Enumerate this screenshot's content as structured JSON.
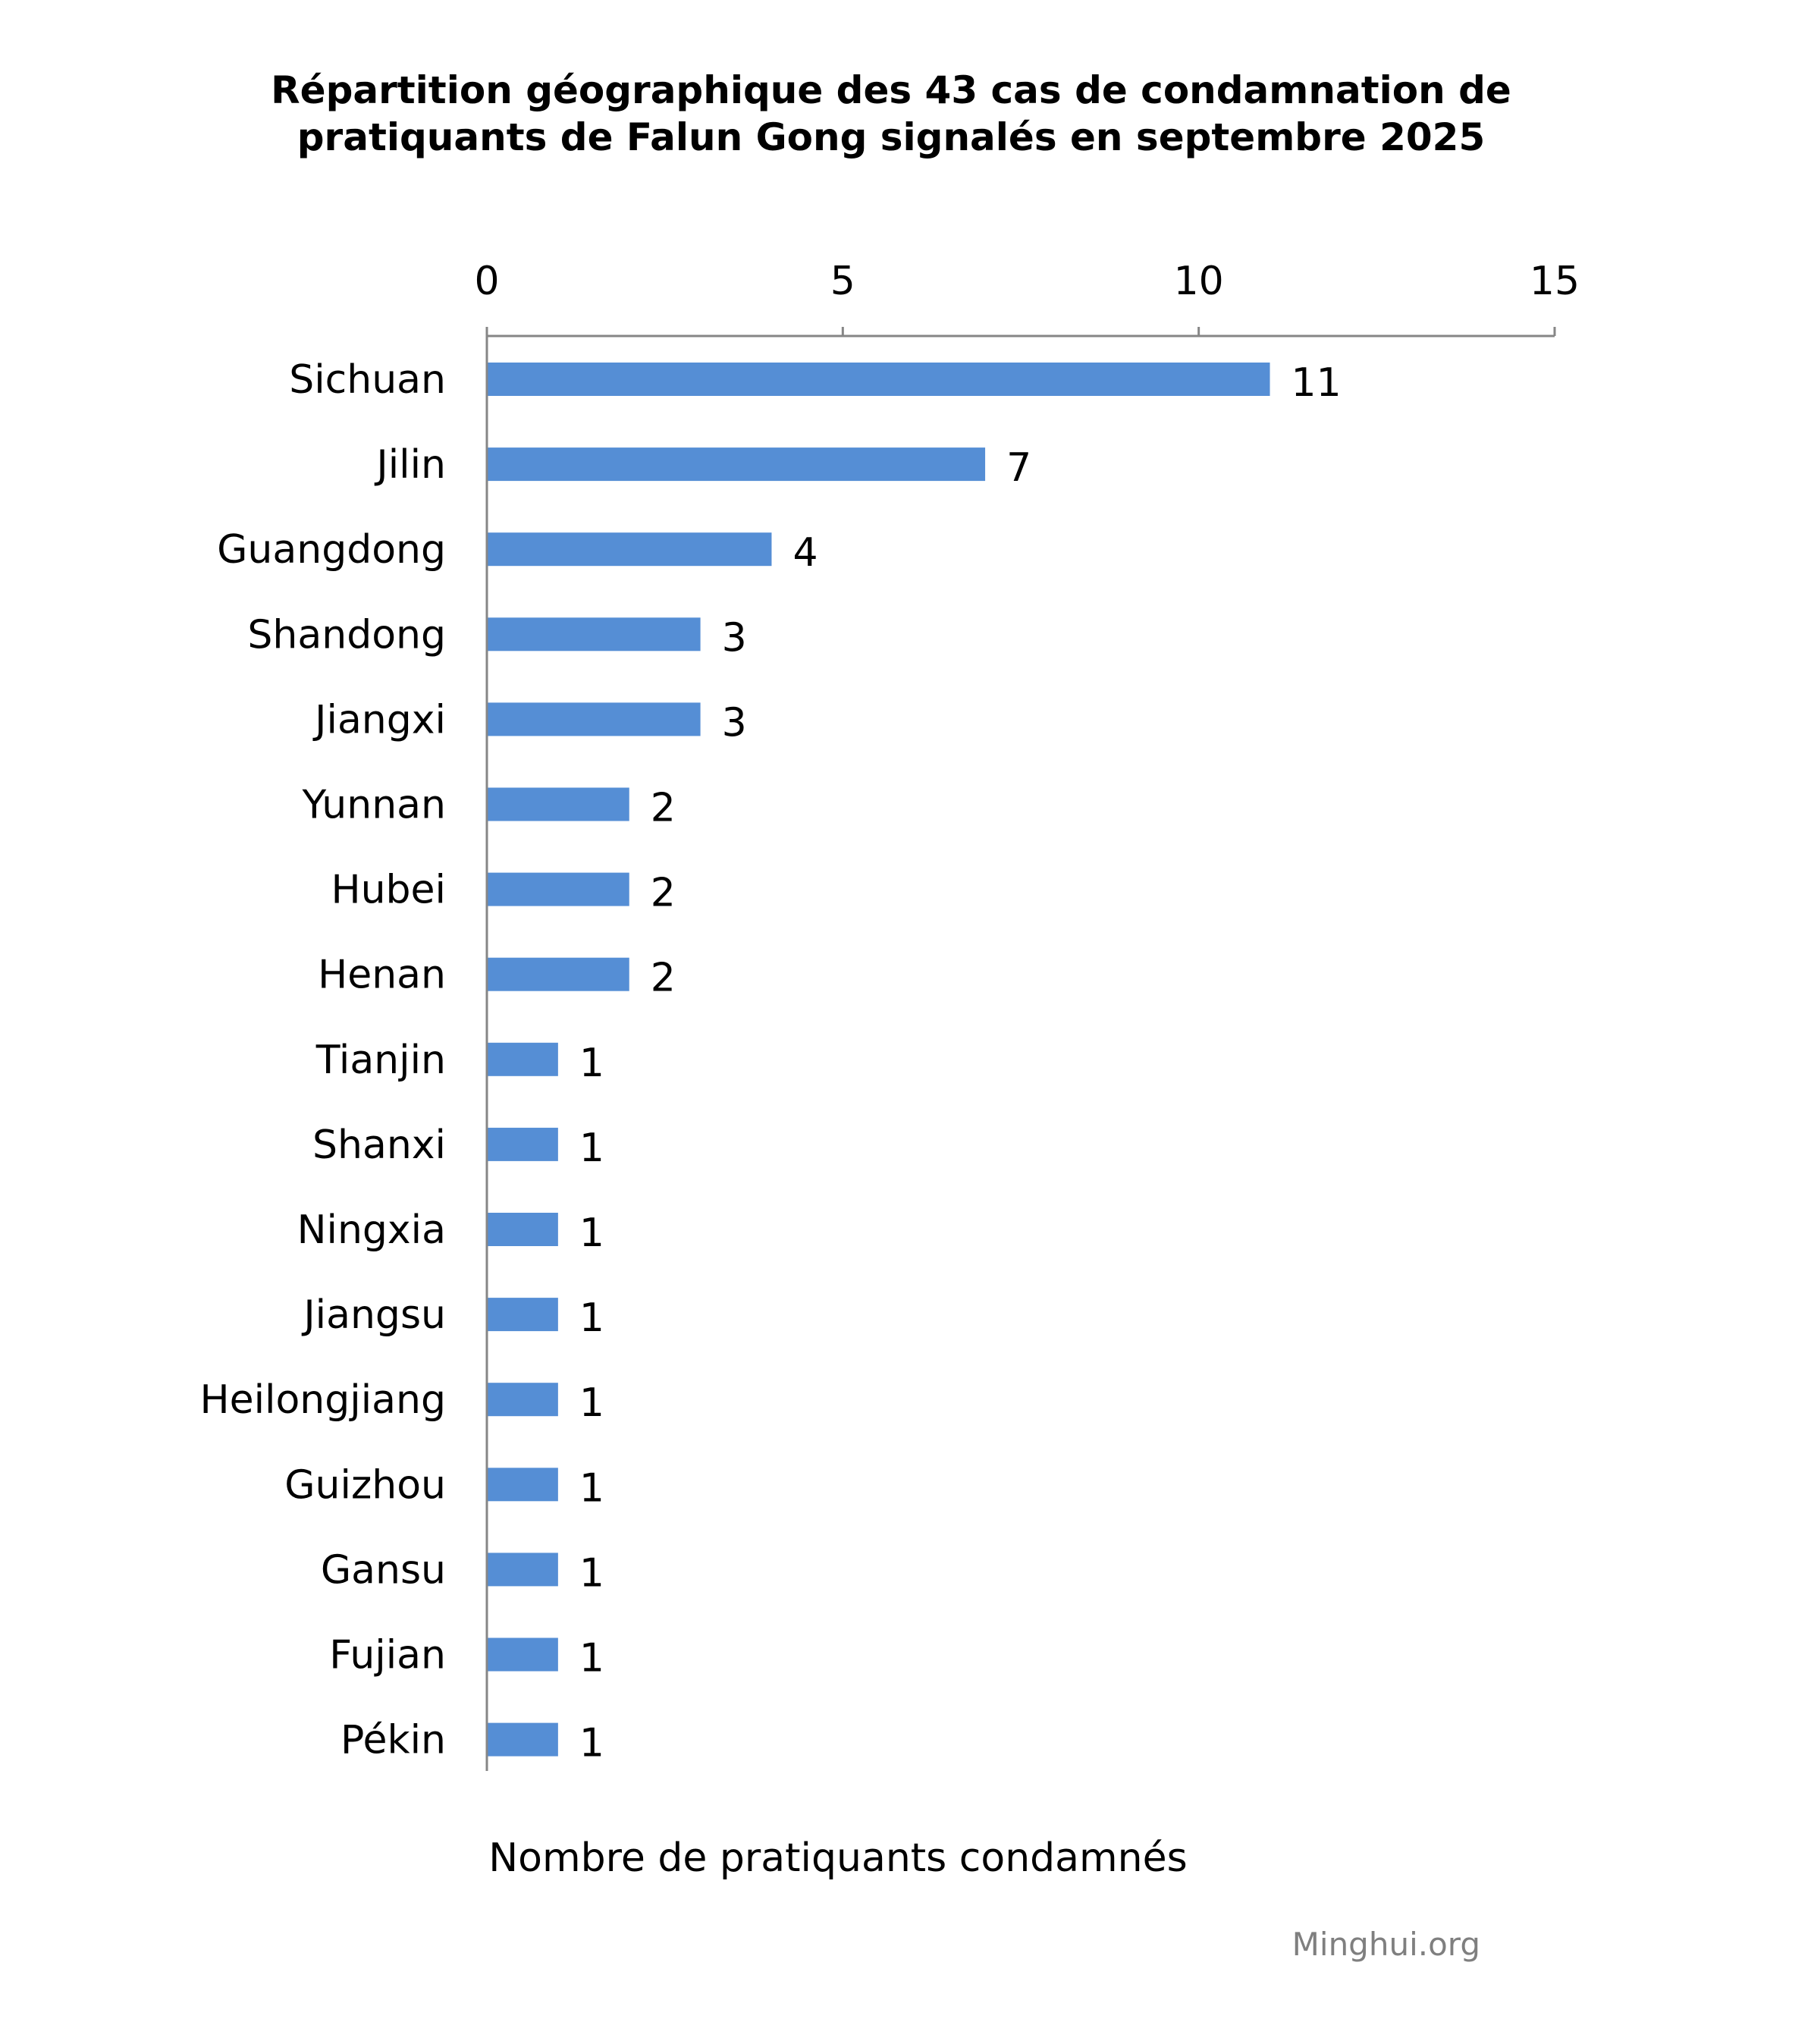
{
  "chart_data": {
    "type": "bar",
    "orientation": "horizontal",
    "title_lines": [
      "Répartition géographique des 43 cas de condamnation de",
      "pratiquants de Falun Gong signalés en septembre 2025"
    ],
    "categories": [
      "Sichuan",
      "Jilin",
      "Guangdong",
      "Shandong",
      "Jiangxi",
      "Yunnan",
      "Hubei",
      "Henan",
      "Tianjin",
      "Shanxi",
      "Ningxia",
      "Jiangsu",
      "Heilongjiang",
      "Guizhou",
      "Gansu",
      "Fujian",
      "Pékin"
    ],
    "values": [
      11,
      7,
      4,
      3,
      3,
      2,
      2,
      2,
      1,
      1,
      1,
      1,
      1,
      1,
      1,
      1,
      1
    ],
    "value_labels": [
      "11",
      "7",
      "4",
      "3",
      "3",
      "2",
      "2",
      "2",
      "1",
      "1",
      "1",
      "1",
      "1",
      "1",
      "1",
      "1",
      "1"
    ],
    "xlabel": "Nombre de pratiquants condamnés",
    "ylabel": "",
    "xlim": [
      0,
      15
    ],
    "x_ticks": [
      0,
      5,
      10,
      15
    ],
    "x_tick_labels": [
      "0",
      "5",
      "10",
      "15"
    ],
    "x_axis_position": "top",
    "grid": false,
    "legend": "none",
    "bar_color": "#558ed5",
    "axis_color": "#868686",
    "source": "Minghui.org",
    "source_color": "#7f7f7f"
  }
}
